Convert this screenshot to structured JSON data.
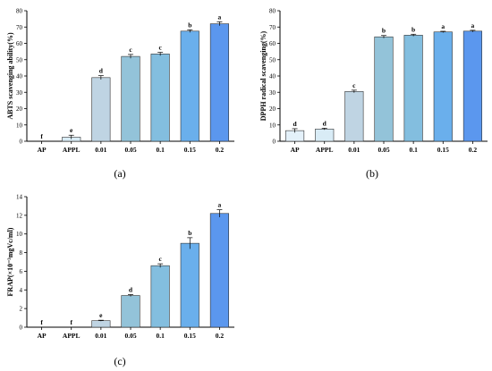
{
  "colors": [
    "#e4f1fa",
    "#d9ecf6",
    "#bfd4e3",
    "#93c3d9",
    "#83bedf",
    "#6aafec",
    "#5b97ee"
  ],
  "chart_data": [
    {
      "type": "bar",
      "panel_label": "(a)",
      "categories": [
        "AP",
        "APPL",
        "0.01",
        "0.05",
        "0.1",
        "0.15",
        "0.2"
      ],
      "values": [
        0,
        2.5,
        39,
        52,
        53.5,
        67.5,
        72
      ],
      "errors": [
        0,
        1.2,
        1.2,
        1.2,
        1.0,
        0.8,
        1.2
      ],
      "letters": [
        "f",
        "e",
        "d",
        "c",
        "c",
        "b",
        "a"
      ],
      "ylabel": "ABTS scavenging ability(%)",
      "ylim": [
        0,
        80
      ],
      "yticks": [
        "0",
        "10",
        "20",
        "30",
        "40",
        "50",
        "60",
        "70",
        "80"
      ]
    },
    {
      "type": "bar",
      "panel_label": "(b)",
      "categories": [
        "AP",
        "APPL",
        "0.01",
        "0.05",
        "0.1",
        "0.15",
        "0.2"
      ],
      "values": [
        6.5,
        7.5,
        30.5,
        64,
        65,
        67,
        67.5
      ],
      "errors": [
        1.2,
        0.5,
        0.8,
        0.8,
        0.6,
        0.4,
        0.5
      ],
      "letters": [
        "d",
        "d",
        "c",
        "b",
        "b",
        "a",
        "a"
      ],
      "ylabel": "DPPH radical scavenging(%)",
      "ylim": [
        0,
        80
      ],
      "yticks": [
        "0",
        "10",
        "20",
        "30",
        "40",
        "50",
        "60",
        "70",
        "80"
      ]
    },
    {
      "type": "bar",
      "panel_label": "(c)",
      "categories": [
        "AP",
        "APPL",
        "0.01",
        "0.05",
        "0.1",
        "0.15",
        "0.2"
      ],
      "values": [
        0,
        0,
        0.7,
        3.4,
        6.6,
        9.0,
        12.2
      ],
      "errors": [
        0,
        0,
        0.05,
        0.1,
        0.2,
        0.6,
        0.4
      ],
      "letters": [
        "f",
        "f",
        "e",
        "d",
        "c",
        "b",
        "a"
      ],
      "ylabel": "FRAP(×10⁻³mgVc/ml)",
      "ylim": [
        0,
        14
      ],
      "yticks": [
        "0",
        "2",
        "4",
        "6",
        "8",
        "10",
        "12",
        "14"
      ]
    }
  ]
}
